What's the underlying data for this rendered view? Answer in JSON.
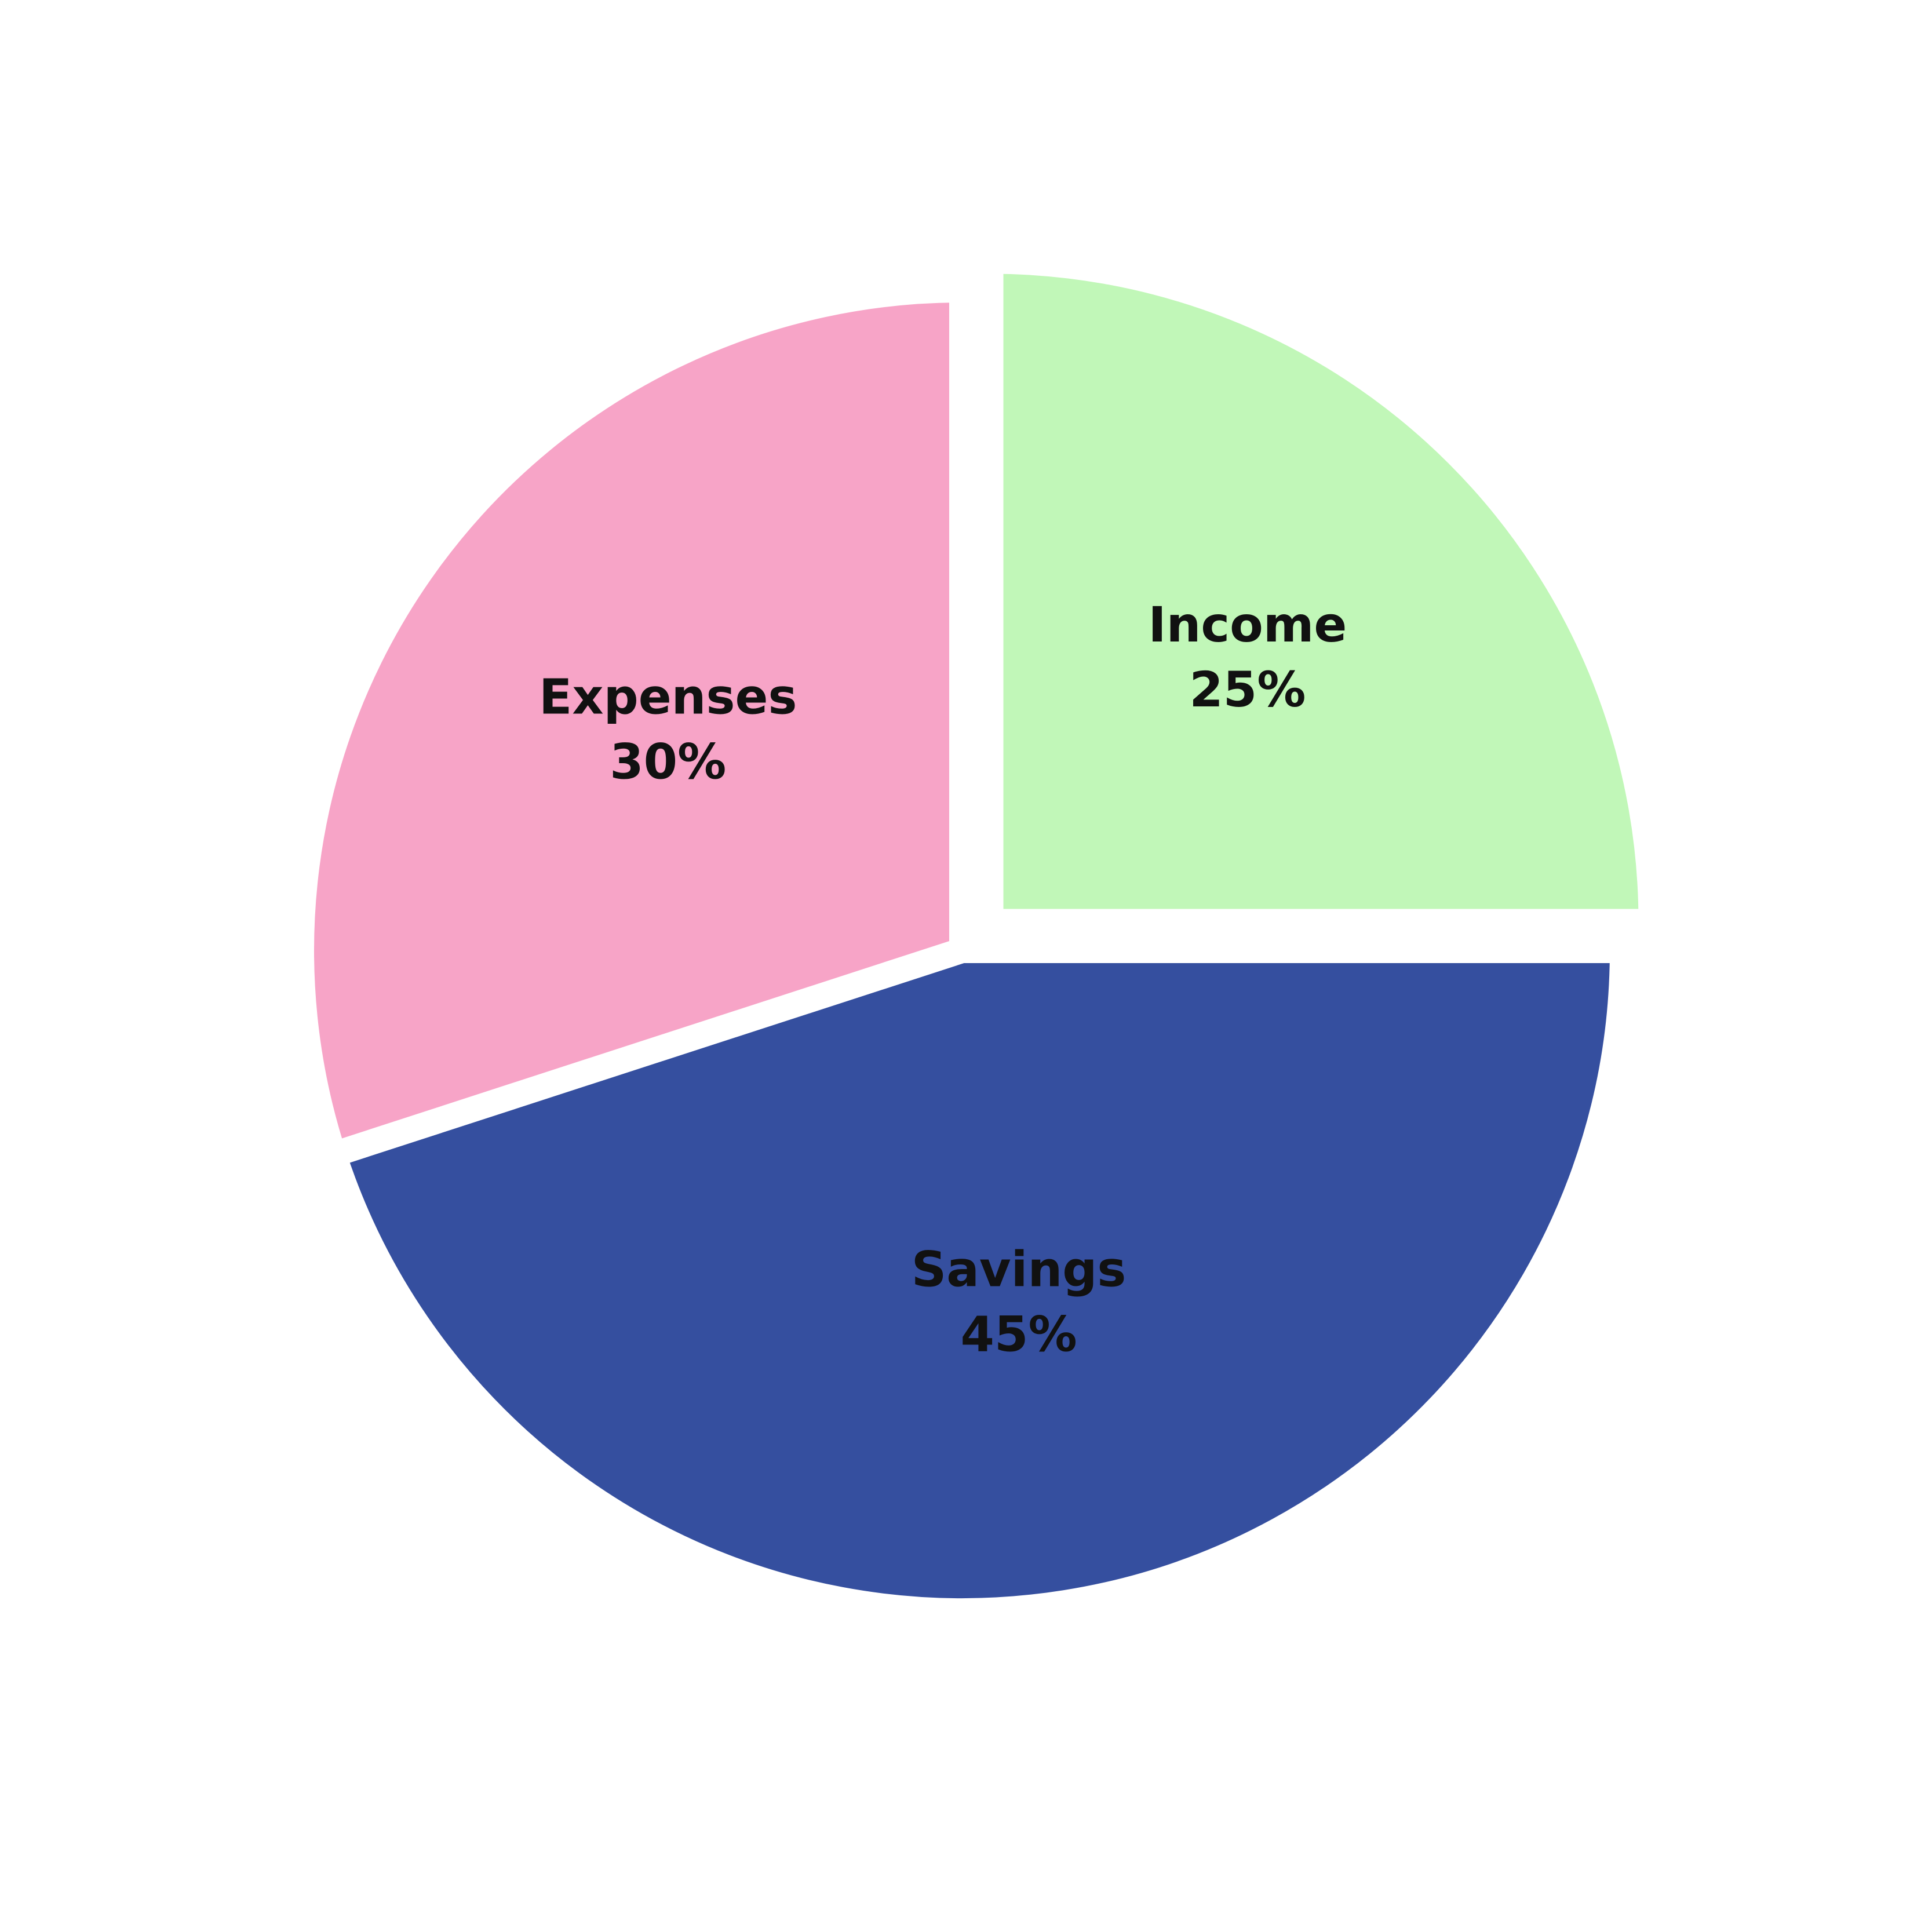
{
  "chart_data": {
    "type": "pie",
    "title": "",
    "slices": [
      {
        "label": "Income",
        "value": 25,
        "value_text": "25%",
        "color": "#c1f7b8"
      },
      {
        "label": "Savings",
        "value": 45,
        "value_text": "45%",
        "color": "#354f9f"
      },
      {
        "label": "Expenses",
        "value": 30,
        "value_text": "30%",
        "color": "#f7a4c7"
      }
    ],
    "start_direction": "top",
    "direction": "clockwise",
    "legend": "none",
    "exploded_slice": "Income"
  }
}
